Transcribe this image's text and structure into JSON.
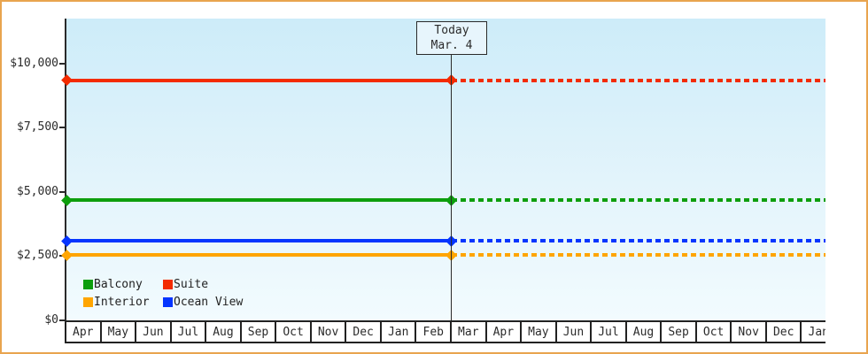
{
  "window": {
    "background_color": "#ffffff",
    "border_color": "#e9a44f"
  },
  "chart_data": {
    "type": "line",
    "title": "",
    "xlabel": "",
    "ylabel": "",
    "x_months": [
      "Apr",
      "May",
      "Jun",
      "Jul",
      "Aug",
      "Sep",
      "Oct",
      "Nov",
      "Dec",
      "Jan",
      "Feb",
      "Mar",
      "Apr",
      "May",
      "Jun",
      "Jul",
      "Aug",
      "Sep",
      "Oct",
      "Nov",
      "Dec",
      "Jan"
    ],
    "y_axis": {
      "ticks": [
        {
          "value": 0,
          "label": "$0"
        },
        {
          "value": 2500,
          "label": "$2,500"
        },
        {
          "value": 5000,
          "label": "$5,000"
        },
        {
          "value": 7500,
          "label": "$7,500"
        },
        {
          "value": 10000,
          "label": "$10,000"
        }
      ],
      "range": [
        0,
        11700
      ]
    },
    "today": {
      "line1": "Today",
      "line2": "Mar. 4",
      "month_index": 11
    },
    "series": [
      {
        "name": "Balcony",
        "color": "#0d9e0d",
        "value": 4670
      },
      {
        "name": "Suite",
        "color": "#f32b00",
        "value": 9330
      },
      {
        "name": "Interior",
        "color": "#ffa500",
        "value": 2520
      },
      {
        "name": "Ocean View",
        "color": "#0535ff",
        "value": 3080
      }
    ],
    "style_notes": {
      "line_style_before_today": "solid",
      "line_style_after_today": "dotted",
      "marker": "diamond at series start and at today line",
      "legend_position": "bottom-left inside plot",
      "plot_gradient_top": "#cdecf9",
      "plot_gradient_bottom": "#f2fbfe",
      "grid": "off"
    }
  }
}
